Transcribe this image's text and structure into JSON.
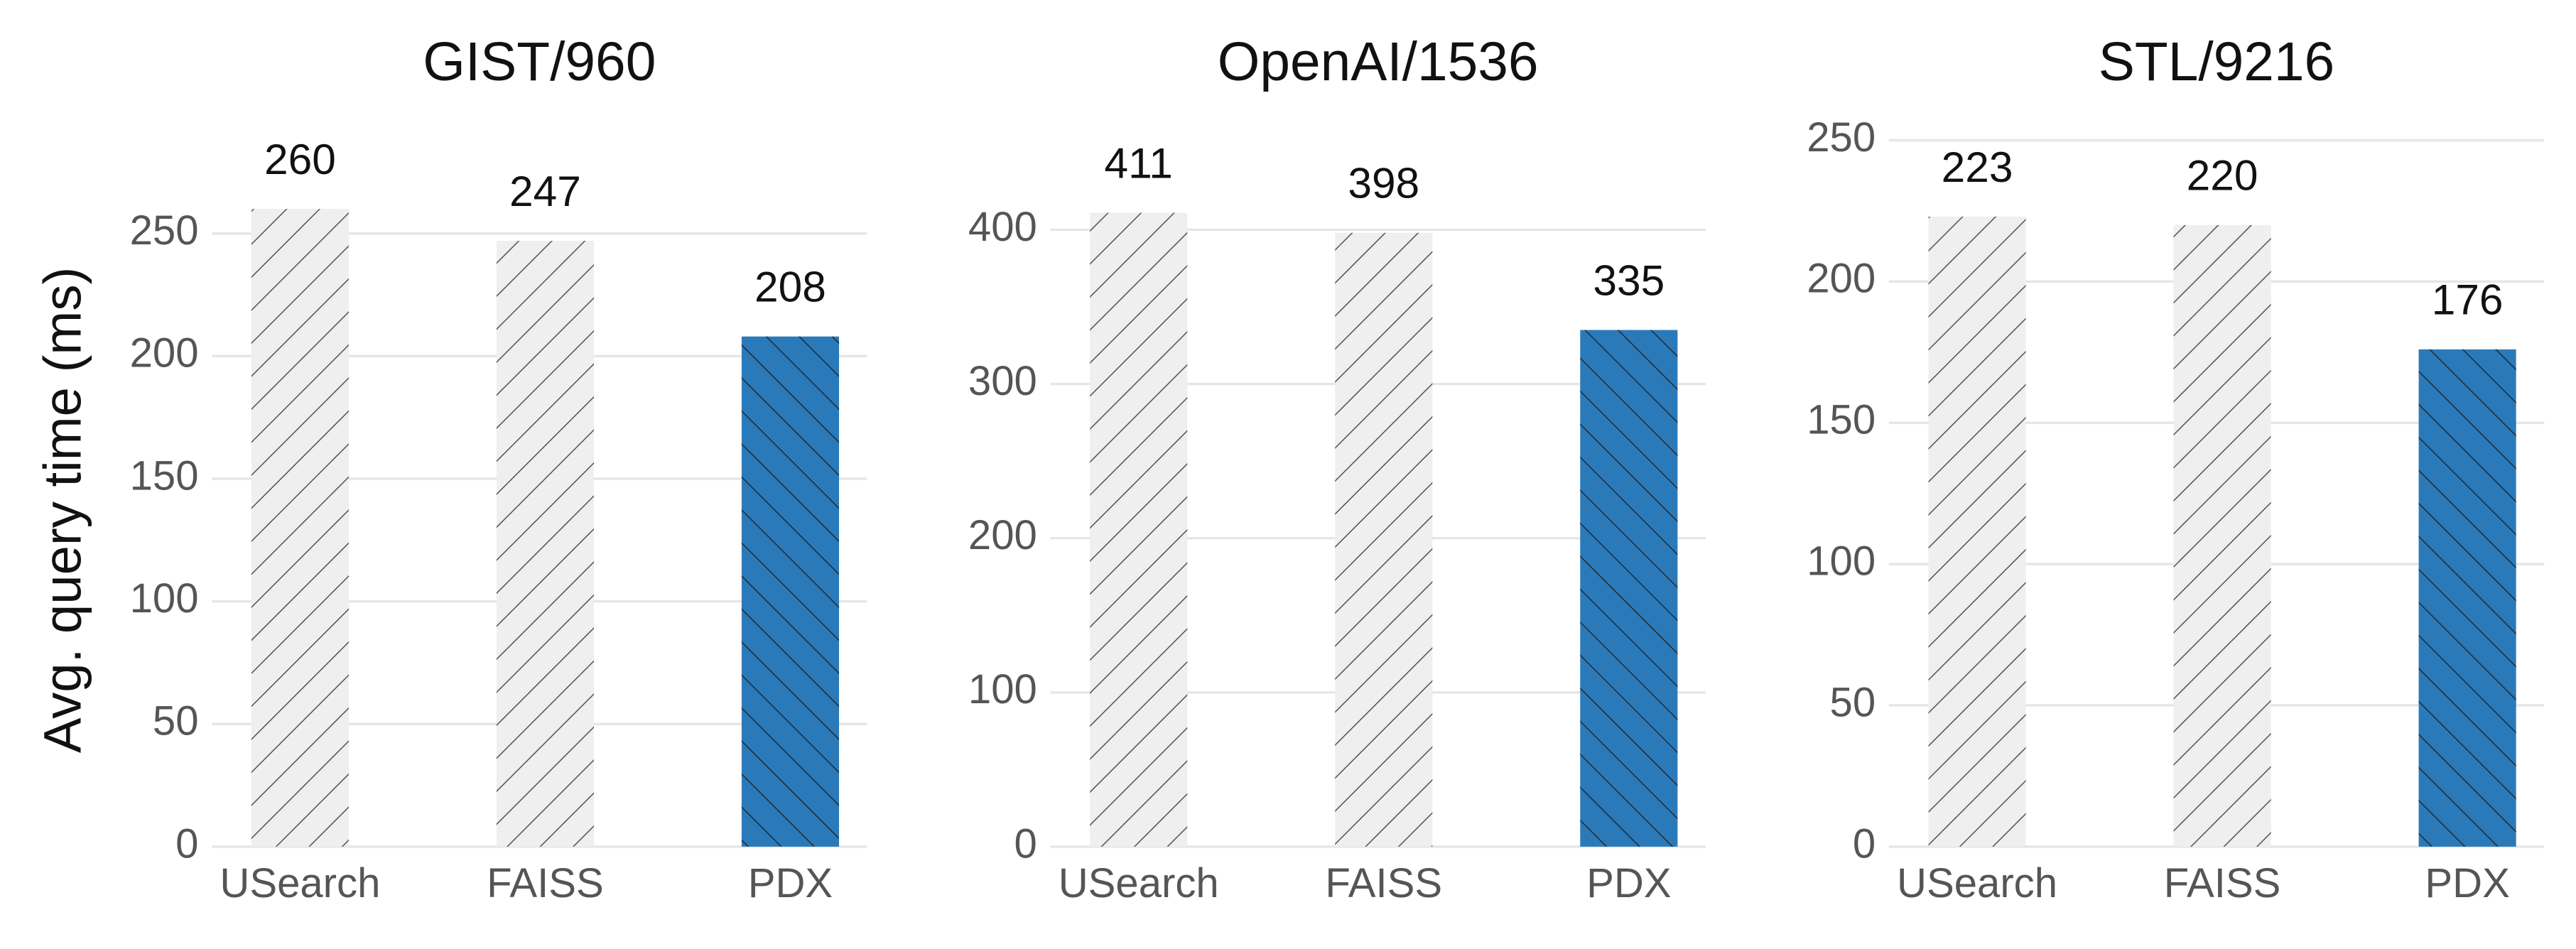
{
  "chart_data": [
    {
      "type": "bar",
      "title": "GIST/960",
      "y_label": "Avg. query time (ms)",
      "categories": [
        "USearch",
        "FAISS",
        "PDX"
      ],
      "values": [
        260,
        247,
        208
      ],
      "colors": [
        "#efefef",
        "#efefef",
        "#2a7aba"
      ],
      "hatches": [
        "/",
        "/",
        "\\"
      ],
      "ylim": [
        0,
        288
      ],
      "yticks": [
        0,
        50,
        100,
        150,
        200,
        250
      ],
      "grid": true
    },
    {
      "type": "bar",
      "title": "OpenAI/1536",
      "categories": [
        "USearch",
        "FAISS",
        "PDX"
      ],
      "values": [
        411,
        398,
        335
      ],
      "colors": [
        "#efefef",
        "#efefef",
        "#2a7aba"
      ],
      "hatches": [
        "/",
        "/",
        "\\"
      ],
      "ylim": [
        0,
        458
      ],
      "yticks": [
        0,
        100,
        200,
        300,
        400
      ],
      "grid": true
    },
    {
      "type": "bar",
      "title": "STL/9216",
      "categories": [
        "USearch",
        "FAISS",
        "PDX"
      ],
      "values": [
        223,
        220,
        176
      ],
      "colors": [
        "#efefef",
        "#efefef",
        "#2a7aba"
      ],
      "hatches": [
        "/",
        "/",
        "\\"
      ],
      "ylim": [
        0,
        250
      ],
      "yticks": [
        0,
        50,
        100,
        150,
        200,
        250
      ],
      "grid": true
    }
  ]
}
